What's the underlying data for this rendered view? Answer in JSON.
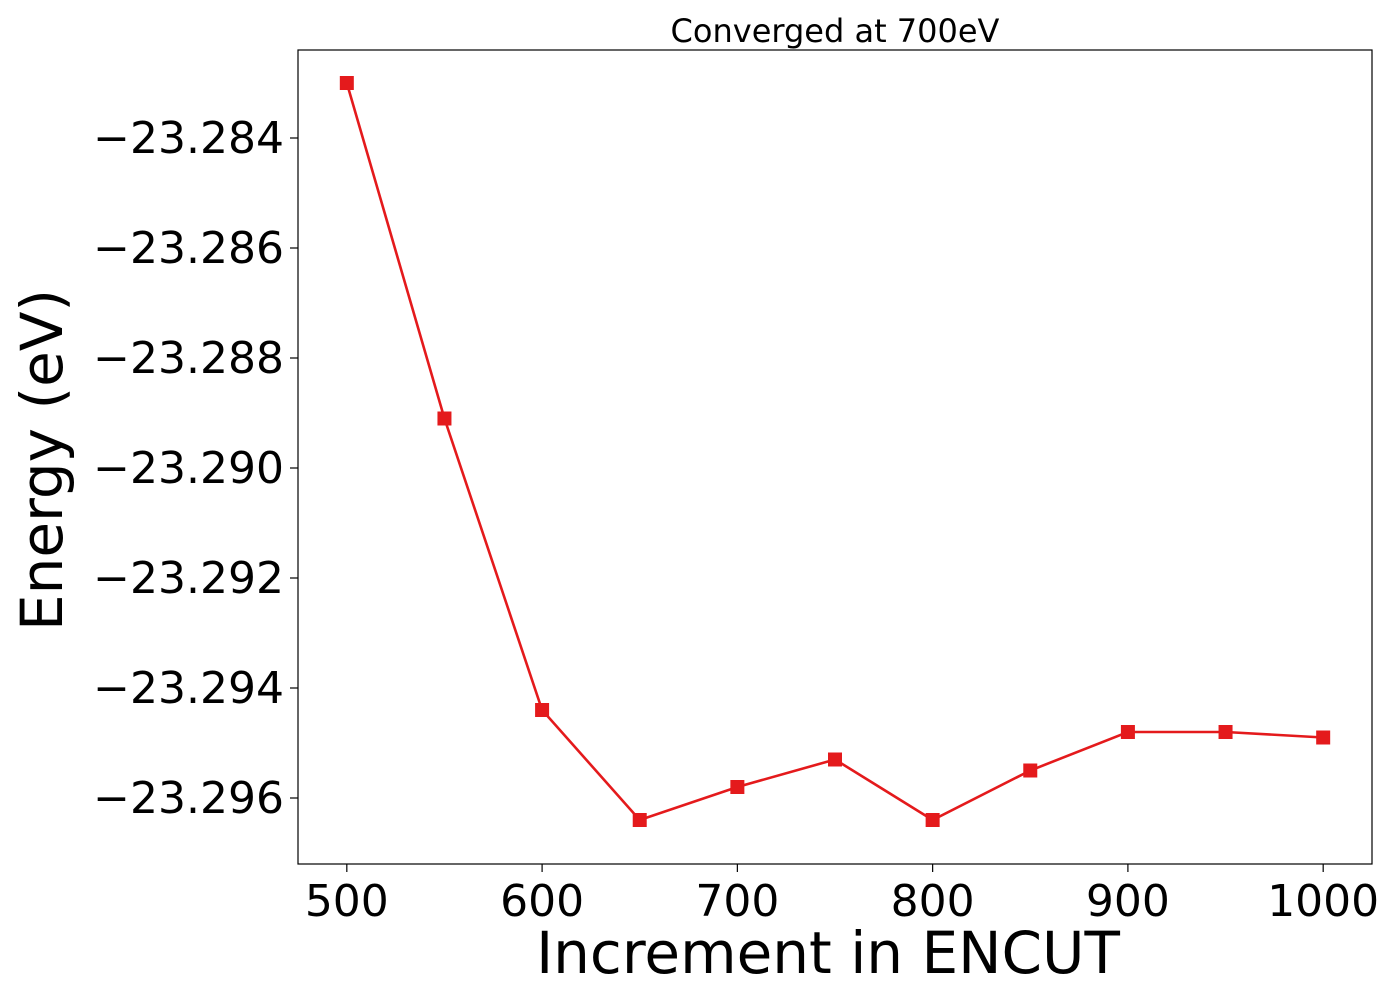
{
  "chart_data": {
    "type": "line",
    "title": "Converged at 700eV",
    "xlabel": "Increment in ENCUT",
    "ylabel": "Energy (eV)",
    "xlim": [
      475,
      1025
    ],
    "ylim": [
      -23.2972,
      -23.2824
    ],
    "xticks": [
      500,
      600,
      700,
      800,
      900,
      1000
    ],
    "xtick_labels": [
      "500",
      "600",
      "700",
      "800",
      "900",
      "1000"
    ],
    "yticks": [
      -23.284,
      -23.286,
      -23.288,
      -23.29,
      -23.292,
      -23.294,
      -23.296
    ],
    "ytick_labels": [
      "−23.284",
      "−23.286",
      "−23.288",
      "−23.290",
      "−23.292",
      "−23.294",
      "−23.296"
    ],
    "grid": false,
    "color": "#e41a1c",
    "marker": "square",
    "x": [
      500,
      550,
      600,
      650,
      700,
      750,
      800,
      850,
      900,
      950,
      1000
    ],
    "y": [
      -23.283,
      -23.2891,
      -23.2944,
      -23.2964,
      -23.2958,
      -23.2953,
      -23.2964,
      -23.2955,
      -23.2948,
      -23.2948,
      -23.2949
    ]
  }
}
